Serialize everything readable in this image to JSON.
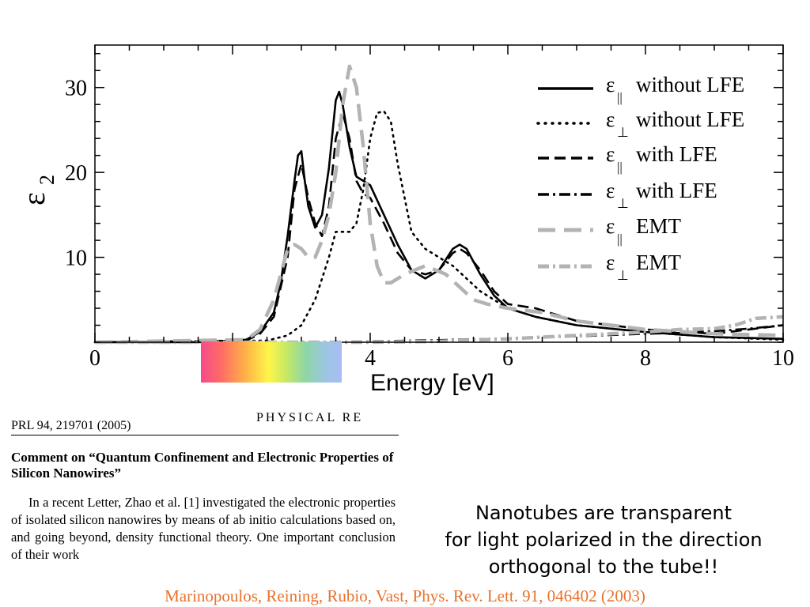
{
  "chart_data": {
    "type": "line",
    "xlabel": "Energy [eV]",
    "ylabel": "ε",
    "ylabel_sub": "2",
    "xlim": [
      0,
      10
    ],
    "ylim": [
      0,
      35
    ],
    "xticks": [
      0,
      2,
      4,
      6,
      8,
      10
    ],
    "yticks": [
      10,
      20,
      30
    ],
    "grid": false,
    "legend_position": "top-right",
    "series": [
      {
        "name": "ε∥ without LFE",
        "symbol": "ε",
        "sub": "||",
        "text": "without LFE",
        "color": "#000000",
        "dash": "solid",
        "x": [
          0,
          1.5,
          2.2,
          2.4,
          2.6,
          2.7,
          2.8,
          2.9,
          2.95,
          3.0,
          3.05,
          3.1,
          3.2,
          3.3,
          3.4,
          3.5,
          3.55,
          3.6,
          3.7,
          3.8,
          3.9,
          4.0,
          4.2,
          4.4,
          4.6,
          4.8,
          5.0,
          5.2,
          5.3,
          5.4,
          5.6,
          5.8,
          6.0,
          6.4,
          7.0,
          8.0,
          9.0,
          10.0
        ],
        "y": [
          0,
          0,
          0.3,
          1.2,
          3.5,
          7,
          12.5,
          19,
          22,
          22.5,
          19,
          16,
          13.5,
          15,
          20.5,
          28.5,
          29.5,
          28,
          23,
          19.5,
          19,
          18.5,
          15,
          11.5,
          8.5,
          7.5,
          8.5,
          11,
          11.5,
          11,
          8,
          5.5,
          4,
          3,
          2,
          1.2,
          0.6,
          0.4
        ]
      },
      {
        "name": "ε⊥ without LFE",
        "symbol": "ε",
        "sub": "⊥",
        "text": "without LFE",
        "color": "#000000",
        "dash": "dot",
        "x": [
          0,
          2.5,
          2.8,
          3.0,
          3.2,
          3.4,
          3.5,
          3.6,
          3.7,
          3.8,
          3.9,
          4.0,
          4.1,
          4.2,
          4.3,
          4.4,
          4.6,
          4.8,
          5.0,
          5.2,
          5.4,
          5.6,
          5.8,
          6.0,
          6.4,
          7.0,
          8.0,
          9.0,
          10.0
        ],
        "y": [
          0,
          0.2,
          0.8,
          2,
          5,
          10,
          13,
          13,
          13,
          14,
          18,
          24,
          27,
          27.2,
          26,
          21,
          13,
          11,
          10,
          9,
          7.5,
          6,
          5,
          4,
          3,
          2,
          1.2,
          0.6,
          0.3
        ]
      },
      {
        "name": "ε∥ with LFE",
        "symbol": "ε",
        "sub": "||",
        "text": "with LFE",
        "color": "#000000",
        "dash": "dash",
        "x": [
          0,
          2.2,
          2.4,
          2.6,
          2.8,
          2.9,
          3.0,
          3.1,
          3.2,
          3.3,
          3.4,
          3.5,
          3.6,
          3.7,
          3.8,
          3.9,
          4.0,
          4.2,
          4.4,
          4.6,
          4.8,
          5.0,
          5.2,
          5.3,
          5.4,
          5.6,
          5.8,
          6.0,
          6.4,
          7.0,
          8.0,
          9.0,
          9.5,
          10.0
        ],
        "y": [
          0,
          0.2,
          1,
          3,
          10,
          18,
          21,
          17,
          14,
          12.5,
          16,
          24,
          27,
          24,
          19,
          17.5,
          17,
          14,
          10.5,
          8.5,
          8,
          8.5,
          10.5,
          11,
          10.5,
          8.5,
          6,
          4.5,
          4,
          2.5,
          1.5,
          1,
          1.5,
          2
        ]
      },
      {
        "name": "ε⊥ with LFE",
        "symbol": "ε",
        "sub": "⊥",
        "text": "with LFE",
        "color": "#000000",
        "dash": "dashdot",
        "x": [
          0,
          3.0,
          4.0,
          5.0,
          6.0,
          7.0,
          8.0,
          8.5,
          9.0,
          9.5,
          10.0
        ],
        "y": [
          0,
          0,
          0.1,
          0.25,
          0.45,
          0.7,
          1,
          1.1,
          1.3,
          1.6,
          2
        ]
      },
      {
        "name": "ε∥ EMT",
        "symbol": "ε",
        "sub": "||",
        "text": "EMT",
        "color": "#b3b3b3",
        "dash": "longdash",
        "x": [
          0,
          2.2,
          2.4,
          2.6,
          2.7,
          2.8,
          2.9,
          3.0,
          3.1,
          3.2,
          3.3,
          3.4,
          3.5,
          3.6,
          3.7,
          3.8,
          3.9,
          4.0,
          4.1,
          4.2,
          4.3,
          4.5,
          4.8,
          5.1,
          5.3,
          5.5,
          5.7,
          6.0,
          6.5,
          7.0,
          8.0,
          9.0,
          10.0
        ],
        "y": [
          0,
          0.3,
          1.5,
          5,
          8,
          11,
          11.5,
          11,
          10,
          10,
          12,
          15,
          20,
          28,
          32.5,
          30,
          23,
          14,
          9,
          7,
          7,
          8,
          9,
          8,
          6.5,
          5,
          4.5,
          4,
          3.5,
          2.5,
          1.5,
          1,
          0.8
        ]
      },
      {
        "name": "ε⊥ EMT",
        "symbol": "ε",
        "sub": "⊥",
        "text": "EMT",
        "color": "#b3b3b3",
        "dash": "dashdot",
        "x": [
          0,
          4.0,
          5.0,
          6.0,
          7.0,
          8.0,
          8.5,
          9.0,
          9.3,
          9.6,
          10.0
        ],
        "y": [
          0,
          0,
          0.1,
          0.4,
          0.8,
          1.2,
          1.5,
          1.6,
          2,
          2.8,
          3
        ]
      }
    ]
  },
  "paper": {
    "ref": "PRL 94, 219701 (2005)",
    "journal": "PHYSICAL RE",
    "title": "Comment on “Quantum Confinement and Electronic Properties of Silicon Nanowires”",
    "body": "In a recent Letter, Zhao et al. [1] investigated the electronic properties of isolated silicon nanowires by means of ab initio calculations based on, and going beyond, density functional theory. One important conclusion of their work"
  },
  "caption": {
    "line1": "Nanotubes are transparent",
    "line2": "for light polarized in the direction",
    "line3": "orthogonal to the tube!!"
  },
  "citation": "Marinopoulos, Reining, Rubio, Vast, Phys. Rev. Lett. 91, 046402 (2003)"
}
